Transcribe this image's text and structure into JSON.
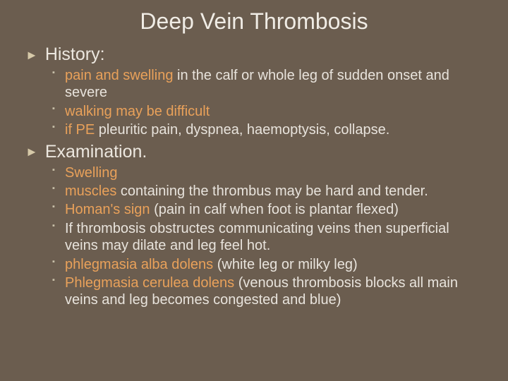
{
  "colors": {
    "background": "#6b5d4f",
    "text": "#e8e3dc",
    "highlight": "#e9a15a",
    "bullet": "#c7bfa8",
    "arrow": "#d6c9a8"
  },
  "typography": {
    "title_fontsize": 32,
    "section_fontsize": 25,
    "body_fontsize": 20,
    "font_family": "Arial"
  },
  "title": "Deep Vein Thrombosis",
  "sections": [
    {
      "label": "History:",
      "items": [
        {
          "spans": [
            {
              "t": "pain and swelling",
              "hl": true
            },
            {
              "t": " in the calf or whole leg  of sudden onset and severe",
              "hl": false
            }
          ]
        },
        {
          "spans": [
            {
              "t": "walking may be difficult",
              "hl": true
            }
          ]
        },
        {
          "spans": [
            {
              "t": "if PE",
              "hl": true
            },
            {
              "t": " pleuritic pain, dyspnea, haemoptysis, collapse.",
              "hl": false
            }
          ]
        }
      ]
    },
    {
      "label": "Examination.",
      "items": [
        {
          "spans": [
            {
              "t": "Swelling",
              "hl": true
            }
          ]
        },
        {
          "spans": [
            {
              "t": "muscles",
              "hl": true
            },
            {
              "t": " containing the thrombus may be hard and tender.",
              "hl": false
            }
          ]
        },
        {
          "spans": [
            {
              "t": "Homan's sign",
              "hl": true
            },
            {
              "t": " (pain in calf when foot is plantar flexed)",
              "hl": false
            }
          ]
        },
        {
          "spans": [
            {
              "t": "If thrombosis obstructes communicating veins then superficial veins may dilate and leg feel hot.",
              "hl": false
            }
          ]
        },
        {
          "spans": [
            {
              "t": "phlegmasia alba dolens",
              "hl": true
            },
            {
              "t": " (white leg or milky leg)",
              "hl": false
            }
          ]
        },
        {
          "spans": [
            {
              "t": "Phlegmasia cerulea dolens",
              "hl": true
            },
            {
              "t": " (venous thrombosis blocks all main veins and leg becomes congested and blue)",
              "hl": false
            }
          ]
        }
      ]
    }
  ]
}
